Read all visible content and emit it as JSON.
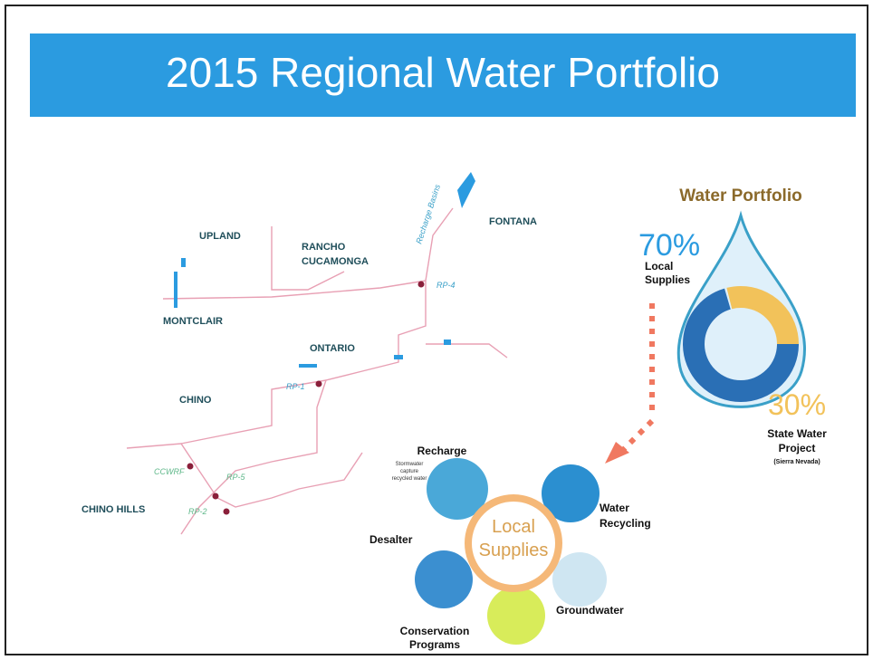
{
  "header": {
    "title": "2015 Regional Water Portfolio"
  },
  "map": {
    "labels": [
      "UPLAND",
      "RANCHO",
      "CUCAMONGA",
      "FONTANA",
      "MONTCLAIR",
      "ONTARIO",
      "CHINO",
      "CHINO HILLS"
    ],
    "facilities": [
      "RP-4",
      "RP-1",
      "CCWRF",
      "RP-5",
      "RP-2"
    ],
    "basins": "Recharge Basins"
  },
  "portfolio": {
    "title": "Water Portfolio",
    "local": {
      "percent": "70%",
      "label": [
        "Local",
        "Supplies"
      ]
    },
    "state": {
      "percent": "30%",
      "label": [
        "State Water",
        "Project"
      ],
      "note": "(Sierra Nevada)"
    }
  },
  "supplies": {
    "center": [
      "Local",
      "Supplies"
    ],
    "recharge": {
      "label": "Recharge",
      "note": [
        "Stormwater",
        "capture",
        "recycled water"
      ]
    },
    "recycling": [
      "Water",
      "Recycling"
    ],
    "groundwater": "Groundwater",
    "conservation": [
      "Conservation",
      "Programs"
    ],
    "desalter": "Desalter"
  }
}
